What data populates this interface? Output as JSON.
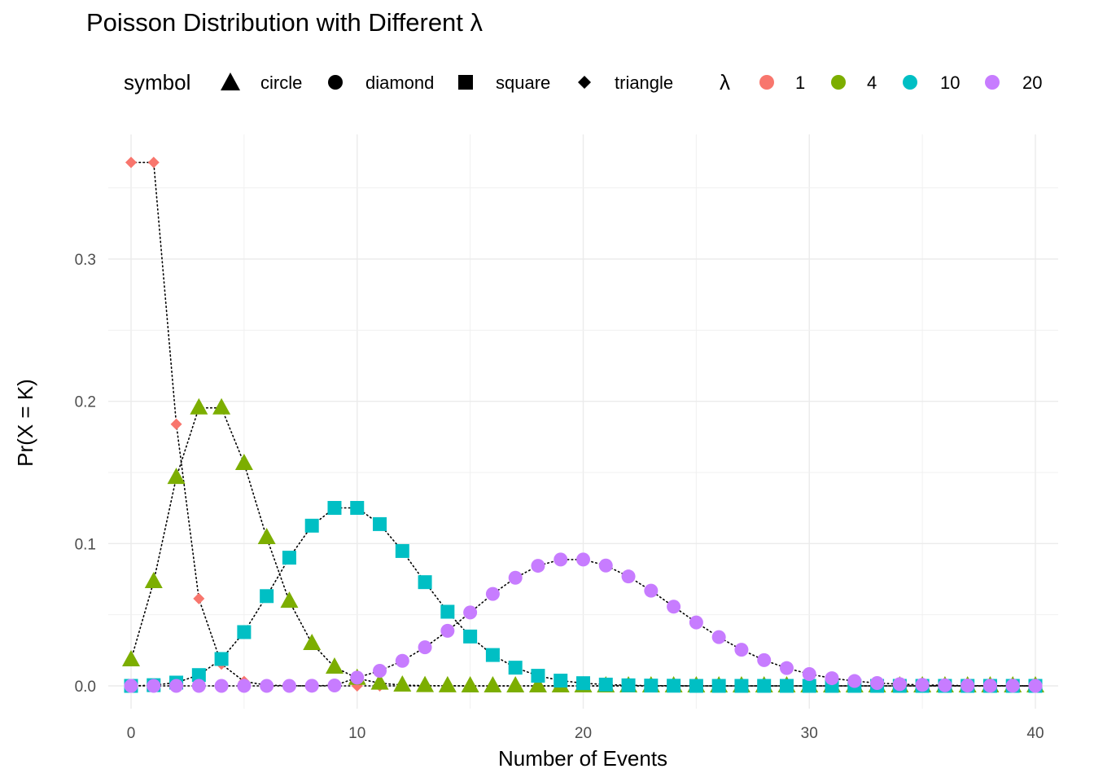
{
  "chart_data": {
    "type": "scatter",
    "title": "Poisson Distribution with Different λ",
    "xlabel": "Number of Events",
    "ylabel": "Pr(X = K)",
    "xlim": [
      -1,
      41
    ],
    "ylim": [
      -0.017,
      0.372
    ],
    "x_ticks": [
      0,
      10,
      20,
      30,
      40
    ],
    "x_tick_labels": [
      "0",
      "10",
      "20",
      "30",
      "40"
    ],
    "y_ticks": [
      0.0,
      0.1,
      0.2,
      0.3
    ],
    "y_tick_labels": [
      "0.0",
      "0.1",
      "0.2",
      "0.3"
    ],
    "grid": true,
    "legend_position": "top",
    "x": [
      0,
      1,
      2,
      3,
      4,
      5,
      6,
      7,
      8,
      9,
      10,
      11,
      12,
      13,
      14,
      15,
      16,
      17,
      18,
      19,
      20,
      21,
      22,
      23,
      24,
      25,
      26,
      27,
      28,
      29,
      30,
      31,
      32,
      33,
      34,
      35,
      36,
      37,
      38,
      39,
      40
    ],
    "series": [
      {
        "name": "1",
        "lambda": 1,
        "symbol": "diamond",
        "color": "#F8766D",
        "values": [
          0.3679,
          0.3679,
          0.1839,
          0.0613,
          0.0153,
          0.0031,
          0.0005,
          0.0001,
          0,
          0,
          0,
          0,
          0,
          0,
          0,
          0,
          0,
          0,
          0,
          0,
          0,
          0,
          0,
          0,
          0,
          0,
          0,
          0,
          0,
          0,
          0,
          0,
          0,
          0,
          0,
          0,
          0,
          0,
          0,
          0,
          0
        ]
      },
      {
        "name": "4",
        "lambda": 4,
        "symbol": "triangle",
        "color": "#7CAE00",
        "values": [
          0.0183,
          0.0733,
          0.1465,
          0.1954,
          0.1954,
          0.1563,
          0.1042,
          0.0595,
          0.0298,
          0.0132,
          0.0053,
          0.0019,
          0.0006,
          0.0002,
          0.0001,
          0,
          0,
          0,
          0,
          0,
          0,
          0,
          0,
          0,
          0,
          0,
          0,
          0,
          0,
          0,
          0,
          0,
          0,
          0,
          0,
          0,
          0,
          0,
          0,
          0,
          0
        ]
      },
      {
        "name": "10",
        "lambda": 10,
        "symbol": "square",
        "color": "#00BFC4",
        "values": [
          0.0,
          0.0005,
          0.0023,
          0.0076,
          0.0189,
          0.0378,
          0.0631,
          0.0901,
          0.1126,
          0.1251,
          0.1251,
          0.1137,
          0.0948,
          0.0729,
          0.0521,
          0.0347,
          0.0217,
          0.0128,
          0.0071,
          0.0037,
          0.0019,
          0.0009,
          0.0004,
          0.0002,
          0.0001,
          0,
          0,
          0,
          0,
          0,
          0,
          0,
          0,
          0,
          0,
          0,
          0,
          0,
          0,
          0,
          0
        ]
      },
      {
        "name": "20",
        "lambda": 20,
        "symbol": "circle",
        "color": "#C77CFF",
        "values": [
          0,
          0,
          0,
          0,
          0,
          0,
          0,
          0.0,
          0.0001,
          0.0003,
          0.0058,
          0.0106,
          0.0176,
          0.0271,
          0.0387,
          0.0516,
          0.0646,
          0.076,
          0.0844,
          0.0888,
          0.0888,
          0.0846,
          0.0769,
          0.0669,
          0.0557,
          0.0446,
          0.0343,
          0.0254,
          0.0181,
          0.0125,
          0.0083,
          0.0054,
          0.0034,
          0.002,
          0.0012,
          0.0007,
          0.0004,
          0.0002,
          0.0001,
          0.0001,
          0.0
        ]
      }
    ]
  },
  "legend": {
    "symbol_title": "symbol",
    "symbol_items": [
      {
        "label": "circle",
        "shape": "triangle"
      },
      {
        "label": "diamond",
        "shape": "circle"
      },
      {
        "label": "square",
        "shape": "square"
      },
      {
        "label": "triangle",
        "shape": "diamond"
      }
    ],
    "lambda_title": "λ",
    "lambda_items": [
      {
        "label": "1",
        "color": "#F8766D"
      },
      {
        "label": "4",
        "color": "#7CAE00"
      },
      {
        "label": "10",
        "color": "#00BFC4"
      },
      {
        "label": "20",
        "color": "#C77CFF"
      }
    ]
  }
}
